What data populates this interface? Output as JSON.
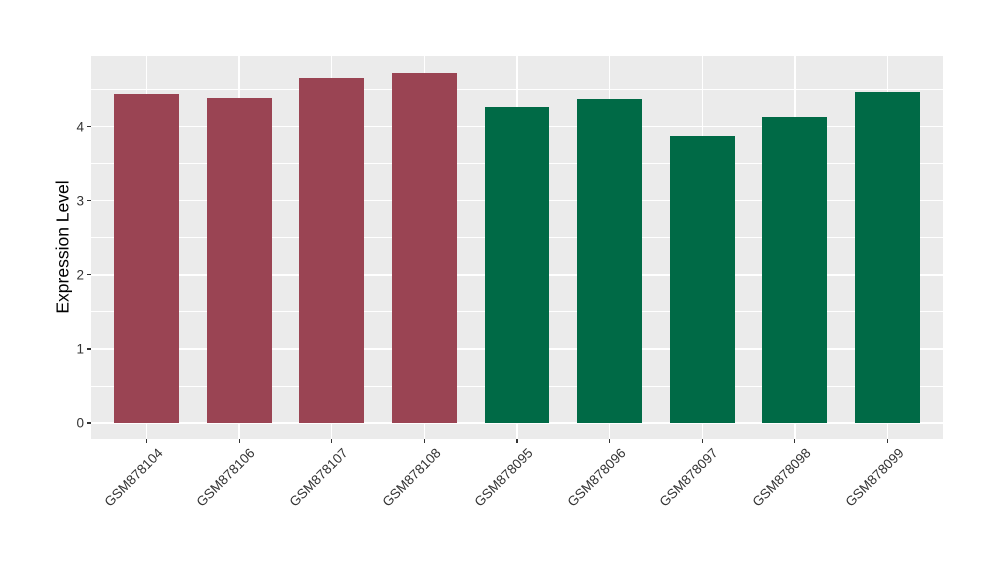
{
  "chart_data": {
    "type": "bar",
    "title": "",
    "xlabel": "",
    "ylabel": "Expression Level",
    "categories": [
      "GSM878104",
      "GSM878106",
      "GSM878107",
      "GSM878108",
      "GSM878095",
      "GSM878096",
      "GSM878097",
      "GSM878098",
      "GSM878099"
    ],
    "values": [
      4.44,
      4.38,
      4.66,
      4.72,
      4.27,
      4.37,
      3.87,
      4.13,
      4.47
    ],
    "bar_colors": [
      "#9A4453",
      "#9A4453",
      "#9A4453",
      "#9A4453",
      "#006A46",
      "#006A46",
      "#006A46",
      "#006A46",
      "#006A46"
    ],
    "groups": [
      {
        "name": "maroon-group",
        "color": "#9A4453",
        "categories": [
          "GSM878104",
          "GSM878106",
          "GSM878107",
          "GSM878108"
        ]
      },
      {
        "name": "green-group",
        "color": "#006A46",
        "categories": [
          "GSM878095",
          "GSM878096",
          "GSM878097",
          "GSM878098",
          "GSM878099"
        ]
      }
    ],
    "ylim": [
      0,
      4.95
    ],
    "yticks": [
      0,
      1,
      2,
      3,
      4
    ],
    "ytick_labels": [
      "0",
      "1",
      "2",
      "3",
      "4"
    ],
    "minor_yticks": [
      0.5,
      1.5,
      2.5,
      3.5,
      4.5
    ],
    "grid": true,
    "legend": "none",
    "x_label_angle_deg": 45,
    "panel_background": "#EBEBEB",
    "grid_color": "#FFFFFF",
    "axis_text_color": "#333333",
    "bar_width_fraction": 0.7
  }
}
